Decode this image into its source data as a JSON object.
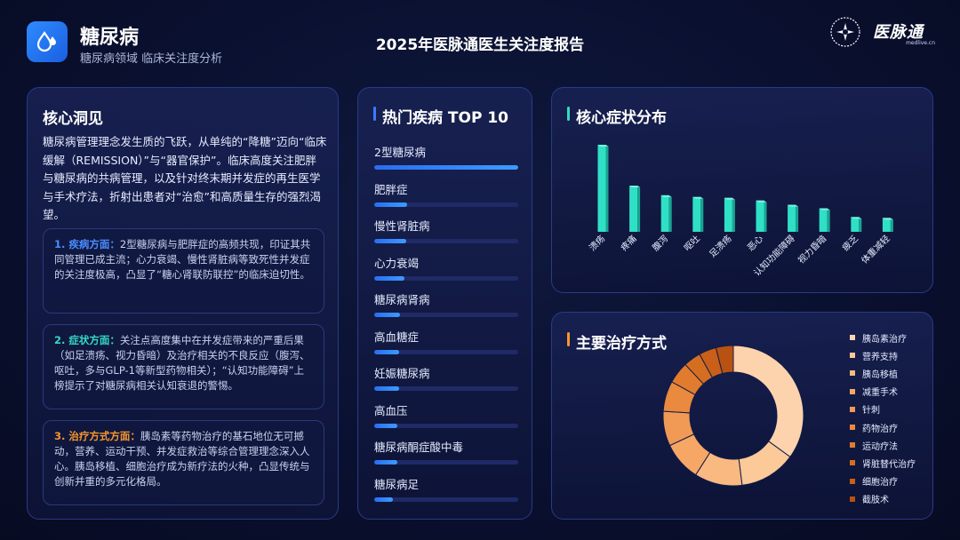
{
  "header": {
    "app_title": "糖尿病",
    "app_subtitle": "糖尿病领域 临床关注度分析",
    "report_title": "2025年医脉通医生关注度报告",
    "logo_text": "医脉通",
    "logo_url": "medlive.cn"
  },
  "insight": {
    "title": "核心洞见",
    "intro": "糖尿病管理理念发生质的飞跃，从单纯的“降糖”迈向“临床缓解（REMISSION）”与“器官保护”。临床高度关注肥胖与糖尿病的共病管理，以及针对终末期并发症的再生医学与手术疗法，折射出患者对“治愈”和高质量生存的强烈渴望。",
    "points": [
      {
        "head": "1. 疾病方面：",
        "body": "2型糖尿病与肥胖症的高频共现，印证其共同管理已成主流；心力衰竭、慢性肾脏病等致死性并发症的关注度极高，凸显了“糖心肾联防联控”的临床迫切性。",
        "color": "#4b8dff"
      },
      {
        "head": "2. 症状方面：",
        "body": "关注点高度集中在并发症带来的严重后果（如足溃疡、视力昏暗）及治疗相关的不良反应（腹泻、呕吐，多与GLP-1等新型药物相关）；“认知功能障碍”上榜提示了对糖尿病相关认知衰退的警惕。",
        "color": "#34d9c3"
      },
      {
        "head": "3. 治疗方式方面：",
        "body": "胰岛素等药物治疗的基石地位无可撼动，营养、运动干预、并发症救治等综合管理理念深入人心。胰岛移植、细胞治疗成为新疗法的火种，凸显传统与创新并重的多元化格局。",
        "color": "#f7962e"
      }
    ]
  },
  "top10": {
    "title": "热门疾病 TOP 10",
    "accent": "#3d7bff",
    "items": [
      {
        "label": "2型糖尿病",
        "value": 1.0
      },
      {
        "label": "肥胖症",
        "value": 0.23
      },
      {
        "label": "慢性肾脏病",
        "value": 0.22
      },
      {
        "label": "心力衰竭",
        "value": 0.21
      },
      {
        "label": "糖尿病肾病",
        "value": 0.18
      },
      {
        "label": "高血糖症",
        "value": 0.17
      },
      {
        "label": "妊娠糖尿病",
        "value": 0.17
      },
      {
        "label": "高血压",
        "value": 0.16
      },
      {
        "label": "糖尿病酮症酸中毒",
        "value": 0.16
      },
      {
        "label": "糖尿病足",
        "value": 0.13
      }
    ]
  },
  "chart_data": [
    {
      "type": "bar",
      "title": "核心症状分布",
      "accent": "#34d9c3",
      "color": "#2fe0c6",
      "categories": [
        "溃疡",
        "疼痛",
        "腹泻",
        "呕吐",
        "足溃疡",
        "恶心",
        "认知功能障碍",
        "视力昏暗",
        "疲乏",
        "体重减轻"
      ],
      "values": [
        100,
        53,
        42,
        40,
        39,
        36,
        31,
        27,
        17,
        16
      ],
      "ylim": [
        0,
        100
      ]
    },
    {
      "type": "pie",
      "title": "主要治疗方式",
      "accent": "#f7962e",
      "labels": [
        "胰岛素治疗",
        "营养支持",
        "胰岛移植",
        "减重手术",
        "针刺",
        "药物治疗",
        "运动疗法",
        "肾脏替代治疗",
        "细胞治疗",
        "截肢术"
      ],
      "values": [
        35,
        13,
        11,
        9,
        8,
        7,
        5,
        4,
        4,
        4
      ],
      "colors": [
        "#fcd3ad",
        "#fcc999",
        "#f9b981",
        "#f6a766",
        "#f19a55",
        "#e98a3e",
        "#e17c2e",
        "#d66e21",
        "#c95f18",
        "#b85212"
      ]
    }
  ]
}
